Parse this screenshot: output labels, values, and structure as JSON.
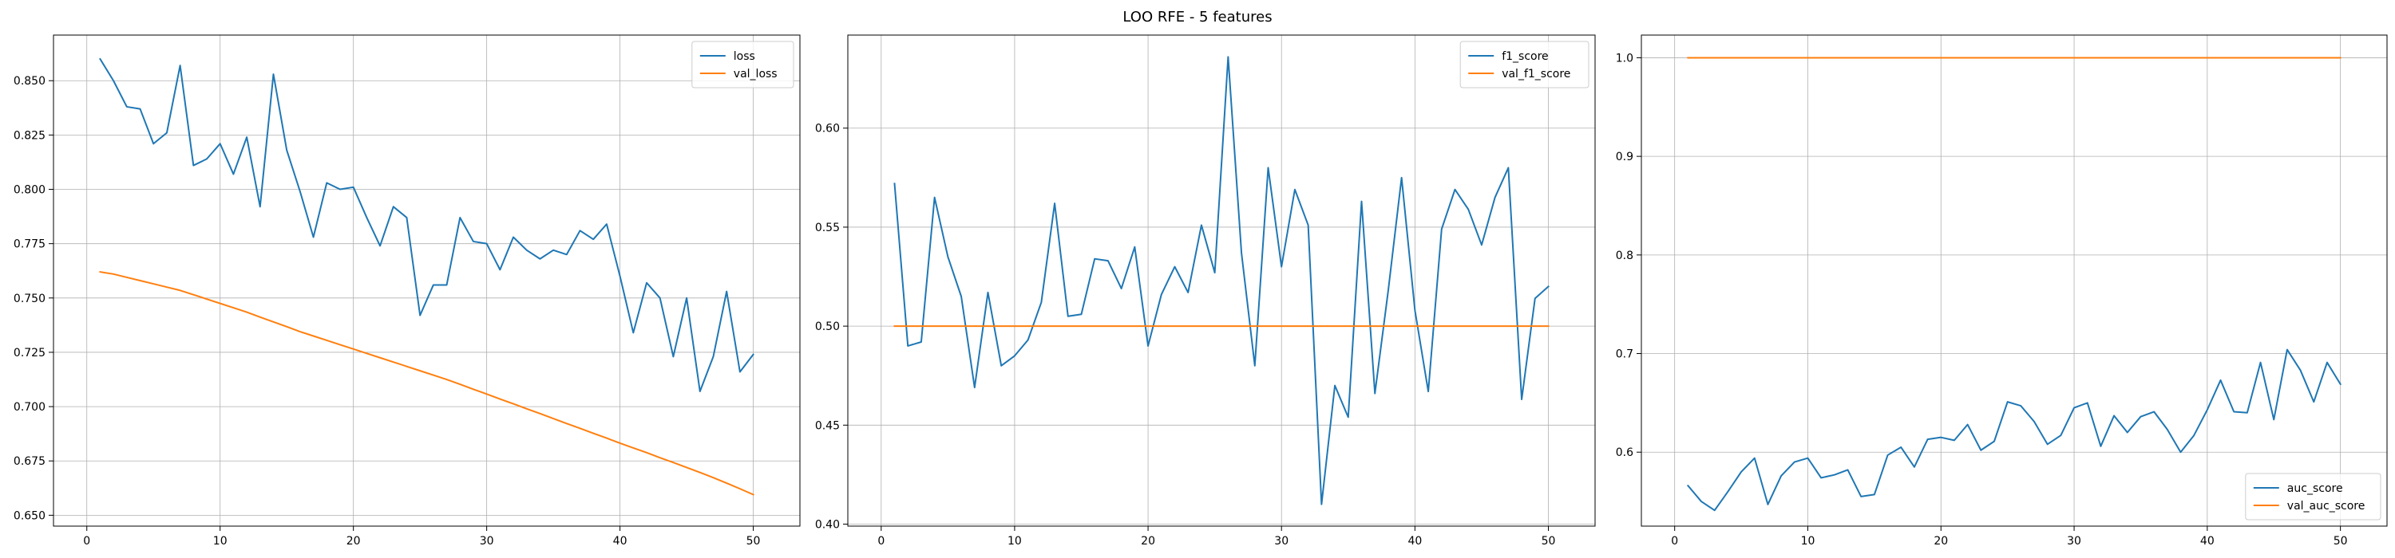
{
  "figure": {
    "title": "LOO RFE - 5 features"
  },
  "chart_data": [
    {
      "type": "line",
      "title": "",
      "xlabel": "",
      "ylabel": "",
      "grid": true,
      "legend_position": "top-right",
      "xlim": [
        -2.5,
        53.5
      ],
      "ylim": [
        0.645,
        0.871
      ],
      "xticks": [
        0,
        10,
        20,
        30,
        40,
        50
      ],
      "xtick_labels": [
        "0",
        "10",
        "20",
        "30",
        "40",
        "50"
      ],
      "yticks": [
        0.65,
        0.675,
        0.7,
        0.725,
        0.75,
        0.775,
        0.8,
        0.825,
        0.85
      ],
      "ytick_labels": [
        "0.650",
        "0.675",
        "0.700",
        "0.725",
        "0.750",
        "0.775",
        "0.800",
        "0.825",
        "0.850"
      ],
      "x": [
        1,
        2,
        3,
        4,
        5,
        6,
        7,
        8,
        9,
        10,
        11,
        12,
        13,
        14,
        15,
        16,
        17,
        18,
        19,
        20,
        21,
        22,
        23,
        24,
        25,
        26,
        27,
        28,
        29,
        30,
        31,
        32,
        33,
        34,
        35,
        36,
        37,
        38,
        39,
        40,
        41,
        42,
        43,
        44,
        45,
        46,
        47,
        48,
        49,
        50
      ],
      "series": [
        {
          "name": "loss",
          "color": "#1f77b4",
          "values": [
            0.86,
            0.85,
            0.838,
            0.837,
            0.821,
            0.826,
            0.857,
            0.811,
            0.814,
            0.821,
            0.807,
            0.824,
            0.792,
            0.853,
            0.818,
            0.799,
            0.778,
            0.803,
            0.8,
            0.801,
            0.787,
            0.774,
            0.792,
            0.787,
            0.742,
            0.756,
            0.756,
            0.787,
            0.776,
            0.775,
            0.763,
            0.778,
            0.772,
            0.768,
            0.772,
            0.77,
            0.781,
            0.777,
            0.784,
            0.76,
            0.734,
            0.757,
            0.75,
            0.723,
            0.75,
            0.707,
            0.723,
            0.753,
            0.716,
            0.724
          ]
        },
        {
          "name": "val_loss",
          "color": "#ff7f0e",
          "values": [
            0.762,
            0.761,
            0.7595,
            0.758,
            0.7565,
            0.755,
            0.7535,
            0.7515,
            0.7495,
            0.7475,
            0.7455,
            0.7435,
            0.7412,
            0.739,
            0.7368,
            0.7345,
            0.7325,
            0.7305,
            0.7285,
            0.7265,
            0.7245,
            0.7225,
            0.7205,
            0.7185,
            0.7165,
            0.7145,
            0.7125,
            0.7103,
            0.708,
            0.7058,
            0.7035,
            0.7013,
            0.699,
            0.6968,
            0.6945,
            0.6922,
            0.69,
            0.6877,
            0.6855,
            0.6832,
            0.681,
            0.6788,
            0.6765,
            0.6743,
            0.672,
            0.6697,
            0.6673,
            0.6648,
            0.6622,
            0.6595
          ]
        }
      ]
    },
    {
      "type": "line",
      "title": "",
      "xlabel": "",
      "ylabel": "",
      "grid": true,
      "legend_position": "top-right",
      "xlim": [
        -2.5,
        53.5
      ],
      "ylim": [
        0.399,
        0.647
      ],
      "xticks": [
        0,
        10,
        20,
        30,
        40,
        50
      ],
      "xtick_labels": [
        "0",
        "10",
        "20",
        "30",
        "40",
        "50"
      ],
      "yticks": [
        0.4,
        0.45,
        0.5,
        0.55,
        0.6
      ],
      "ytick_labels": [
        "0.40",
        "0.45",
        "0.50",
        "0.55",
        "0.60"
      ],
      "x": [
        1,
        2,
        3,
        4,
        5,
        6,
        7,
        8,
        9,
        10,
        11,
        12,
        13,
        14,
        15,
        16,
        17,
        18,
        19,
        20,
        21,
        22,
        23,
        24,
        25,
        26,
        27,
        28,
        29,
        30,
        31,
        32,
        33,
        34,
        35,
        36,
        37,
        38,
        39,
        40,
        41,
        42,
        43,
        44,
        45,
        46,
        47,
        48,
        49,
        50
      ],
      "series": [
        {
          "name": "f1_score",
          "color": "#1f77b4",
          "values": [
            0.572,
            0.49,
            0.492,
            0.565,
            0.535,
            0.515,
            0.469,
            0.517,
            0.48,
            0.485,
            0.493,
            0.512,
            0.562,
            0.505,
            0.506,
            0.534,
            0.533,
            0.519,
            0.54,
            0.49,
            0.516,
            0.53,
            0.517,
            0.551,
            0.527,
            0.636,
            0.537,
            0.48,
            0.58,
            0.53,
            0.569,
            0.551,
            0.41,
            0.47,
            0.454,
            0.563,
            0.466,
            0.518,
            0.575,
            0.508,
            0.467,
            0.549,
            0.569,
            0.559,
            0.541,
            0.565,
            0.58,
            0.463,
            0.514,
            0.52
          ]
        },
        {
          "name": "val_f1_score",
          "color": "#ff7f0e",
          "values": [
            0.5,
            0.5,
            0.5,
            0.5,
            0.5,
            0.5,
            0.5,
            0.5,
            0.5,
            0.5,
            0.5,
            0.5,
            0.5,
            0.5,
            0.5,
            0.5,
            0.5,
            0.5,
            0.5,
            0.5,
            0.5,
            0.5,
            0.5,
            0.5,
            0.5,
            0.5,
            0.5,
            0.5,
            0.5,
            0.5,
            0.5,
            0.5,
            0.5,
            0.5,
            0.5,
            0.5,
            0.5,
            0.5,
            0.5,
            0.5,
            0.5,
            0.5,
            0.5,
            0.5,
            0.5,
            0.5,
            0.5,
            0.5,
            0.5,
            0.5
          ]
        }
      ]
    },
    {
      "type": "line",
      "title": "",
      "xlabel": "",
      "ylabel": "",
      "grid": true,
      "legend_position": "bottom-right",
      "xlim": [
        -2.5,
        53.5
      ],
      "ylim": [
        0.525,
        1.023
      ],
      "xticks": [
        0,
        10,
        20,
        30,
        40,
        50
      ],
      "xtick_labels": [
        "0",
        "10",
        "20",
        "30",
        "40",
        "50"
      ],
      "yticks": [
        0.6,
        0.7,
        0.8,
        0.9,
        1.0
      ],
      "ytick_labels": [
        "0.6",
        "0.7",
        "0.8",
        "0.9",
        "1.0"
      ],
      "x": [
        1,
        2,
        3,
        4,
        5,
        6,
        7,
        8,
        9,
        10,
        11,
        12,
        13,
        14,
        15,
        16,
        17,
        18,
        19,
        20,
        21,
        22,
        23,
        24,
        25,
        26,
        27,
        28,
        29,
        30,
        31,
        32,
        33,
        34,
        35,
        36,
        37,
        38,
        39,
        40,
        41,
        42,
        43,
        44,
        45,
        46,
        47,
        48,
        49,
        50
      ],
      "series": [
        {
          "name": "auc_score",
          "color": "#1f77b4",
          "values": [
            0.566,
            0.55,
            0.541,
            0.56,
            0.58,
            0.594,
            0.547,
            0.576,
            0.59,
            0.594,
            0.574,
            0.577,
            0.582,
            0.555,
            0.557,
            0.597,
            0.605,
            0.585,
            0.613,
            0.615,
            0.612,
            0.628,
            0.602,
            0.611,
            0.651,
            0.647,
            0.631,
            0.608,
            0.617,
            0.645,
            0.65,
            0.606,
            0.637,
            0.62,
            0.636,
            0.641,
            0.623,
            0.6,
            0.617,
            0.643,
            0.673,
            0.641,
            0.64,
            0.691,
            0.633,
            0.704,
            0.683,
            0.651,
            0.691,
            0.669
          ]
        },
        {
          "name": "val_auc_score",
          "color": "#ff7f0e",
          "values": [
            1.0,
            1.0,
            1.0,
            1.0,
            1.0,
            1.0,
            1.0,
            1.0,
            1.0,
            1.0,
            1.0,
            1.0,
            1.0,
            1.0,
            1.0,
            1.0,
            1.0,
            1.0,
            1.0,
            1.0,
            1.0,
            1.0,
            1.0,
            1.0,
            1.0,
            1.0,
            1.0,
            1.0,
            1.0,
            1.0,
            1.0,
            1.0,
            1.0,
            1.0,
            1.0,
            1.0,
            1.0,
            1.0,
            1.0,
            1.0,
            1.0,
            1.0,
            1.0,
            1.0,
            1.0,
            1.0,
            1.0,
            1.0,
            1.0,
            1.0
          ]
        }
      ]
    }
  ]
}
